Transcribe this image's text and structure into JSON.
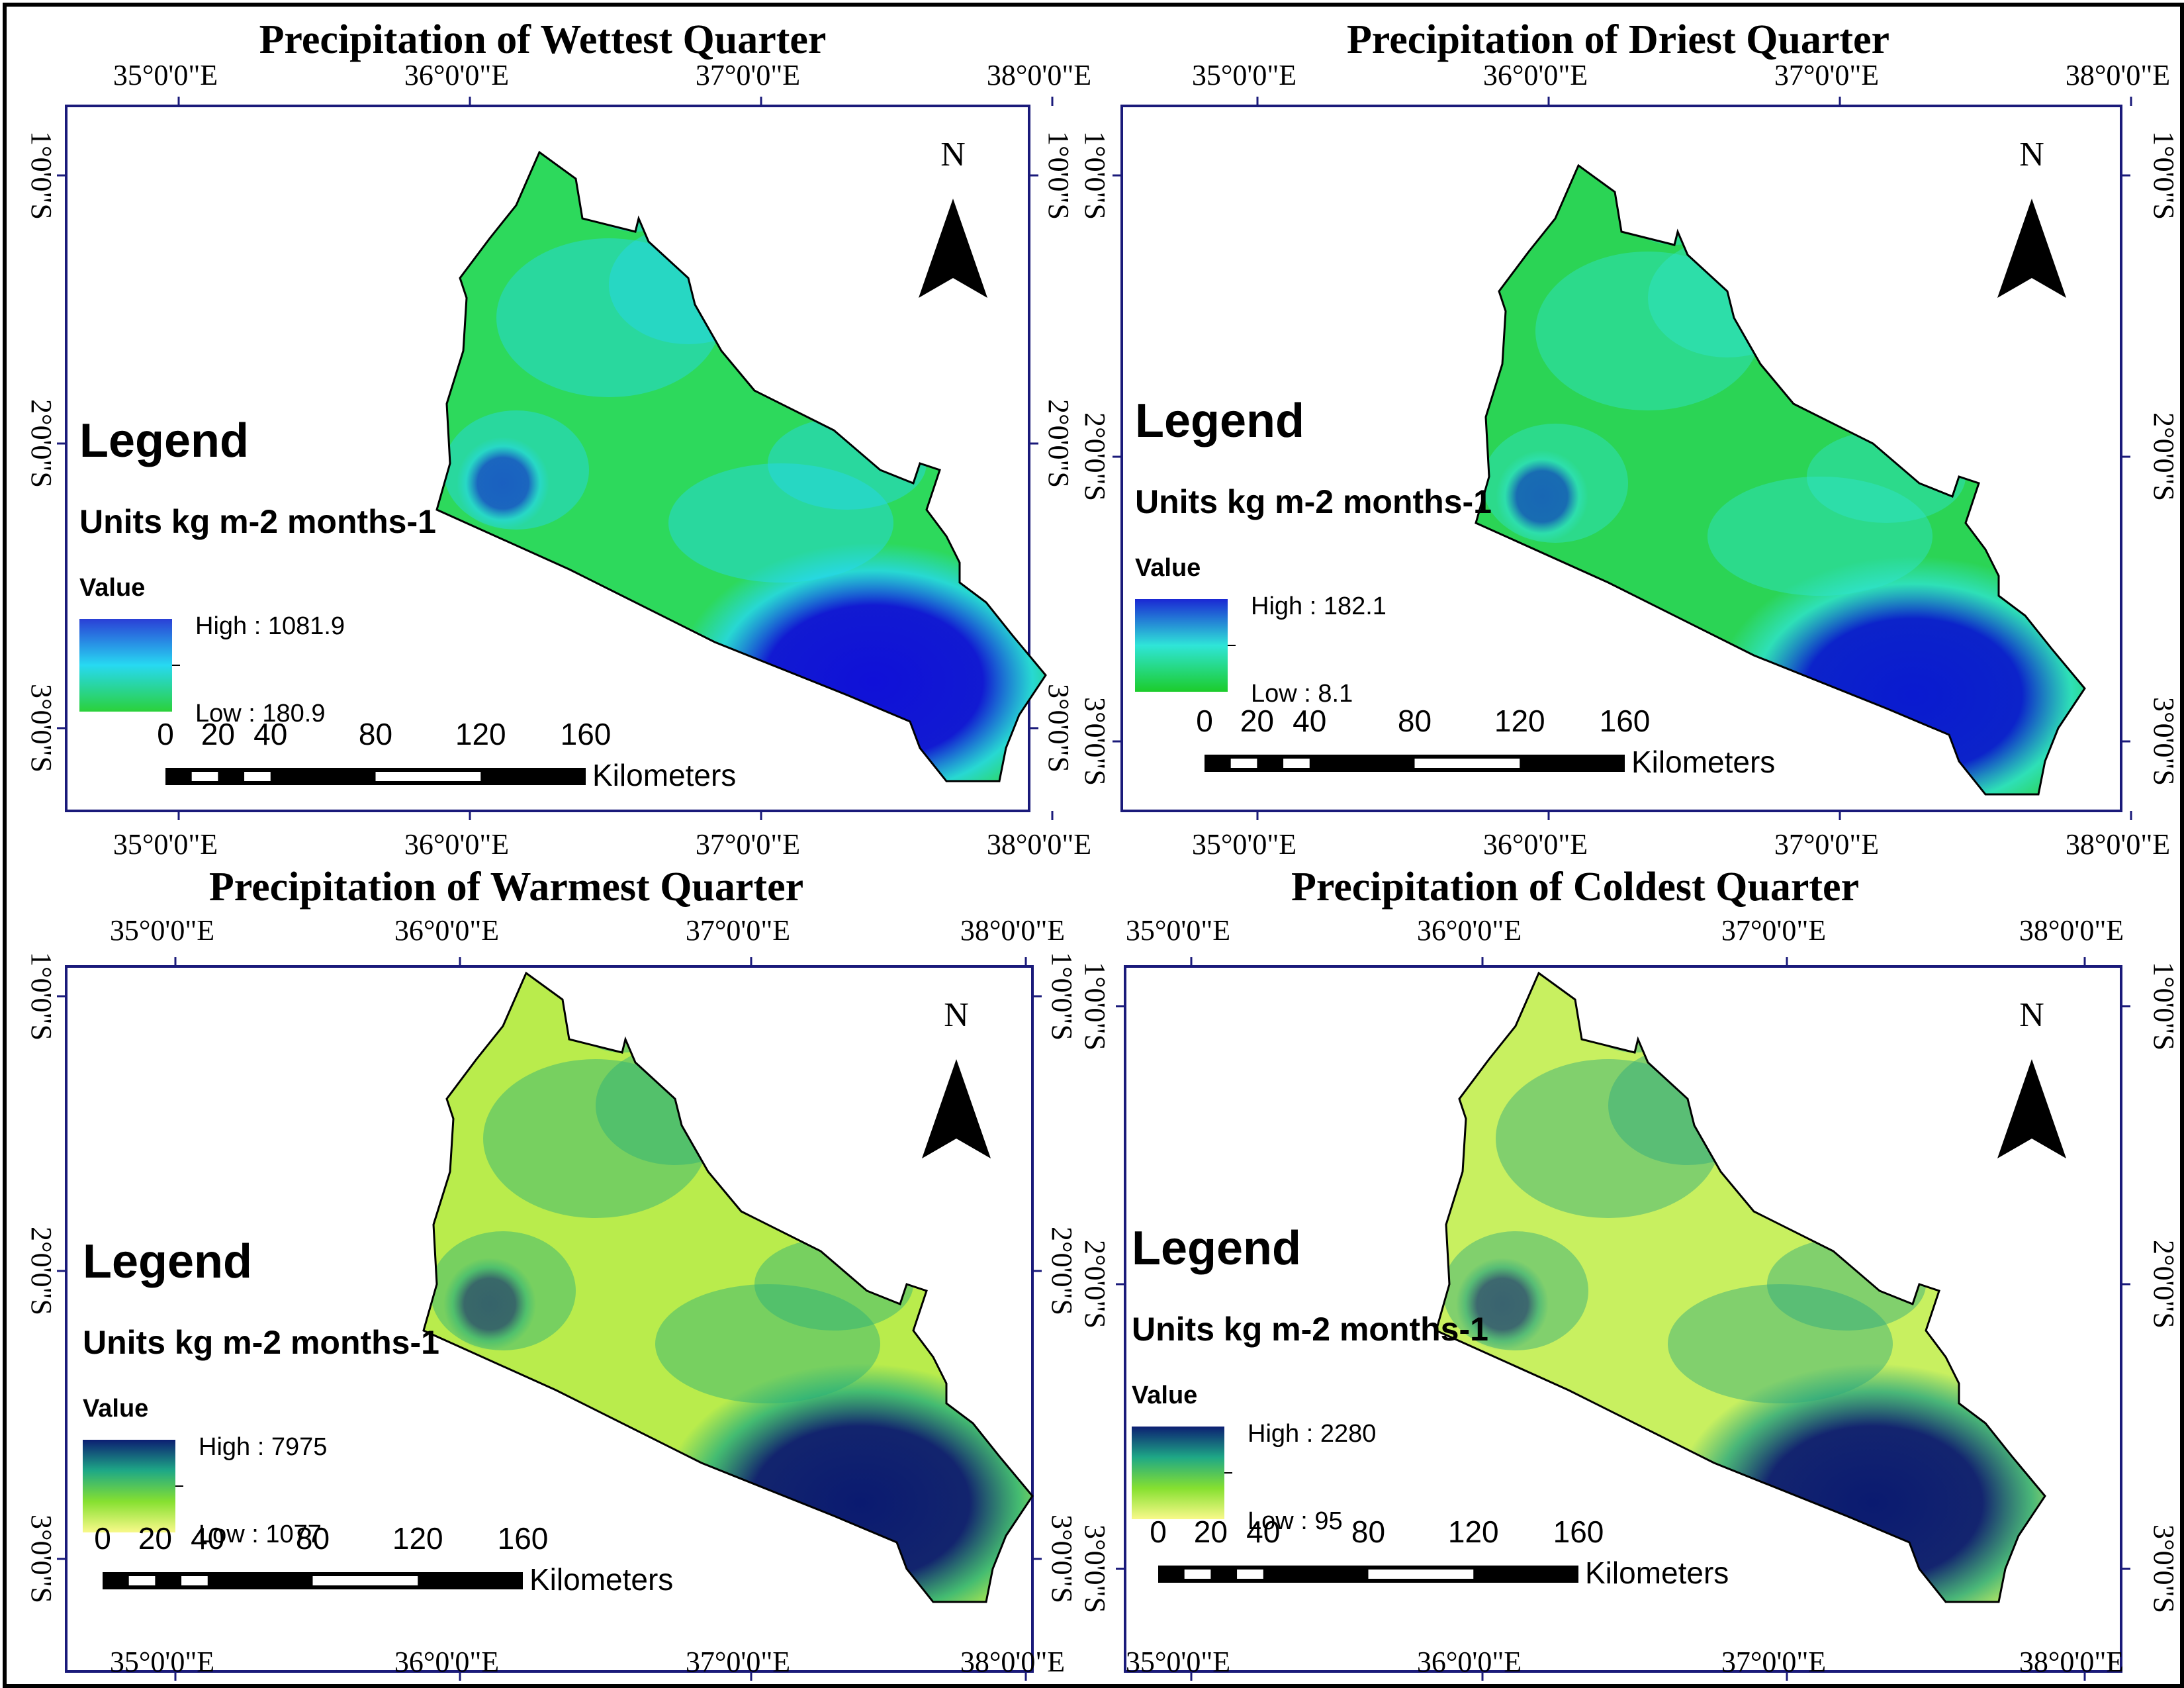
{
  "panels": [
    {
      "title": "Precipitation of Wettest Quarter",
      "legend_heading": "Legend",
      "units": "Units kg m-2 months-1",
      "value_label": "Value",
      "high_label": "High : 1081.9",
      "low_label": "Low : 180.9",
      "high_value": 1081.9,
      "low_value": 180.9,
      "ramp": [
        "#2a3fd6",
        "#27d9f2",
        "#2bd13a"
      ],
      "field": {
        "base": "#2dd95c",
        "hot": "#1010d8",
        "mid": "#26d8f0"
      }
    },
    {
      "title": "Precipitation of Driest Quarter",
      "legend_heading": "Legend",
      "units": "Units kg m-2 months-1",
      "value_label": "Value",
      "high_label": "High : 182.1",
      "low_label": "Low : 8.1",
      "high_value": 182.1,
      "low_value": 8.1,
      "ramp": [
        "#1a28d4",
        "#2fe5d8",
        "#1ccc2a"
      ],
      "field": {
        "base": "#2bd455",
        "hot": "#0a1ad0",
        "mid": "#2fe3cf"
      }
    },
    {
      "title": "Precipitation of Warmest Quarter",
      "legend_heading": "Legend",
      "units": "Units kg m-2 months-1",
      "value_label": "Value",
      "high_label": "High : 7975",
      "low_label": "Low : 1077",
      "high_value": 7975,
      "low_value": 1077,
      "ramp": [
        "#0c1f72",
        "#1ea886",
        "#86e030",
        "#f9f98a"
      ],
      "field": {
        "base": "#b9ec4c",
        "hot": "#0a1a70",
        "mid": "#27b07a"
      }
    },
    {
      "title": "Precipitation of Coldest Quarter",
      "legend_heading": "Legend",
      "units": "Units kg m-2 months-1",
      "value_label": "Value",
      "high_label": "High : 2280",
      "low_label": "Low : 95",
      "high_value": 2280,
      "low_value": 95,
      "ramp": [
        "#0c1f72",
        "#1ea886",
        "#86e030",
        "#f9f98a"
      ],
      "field": {
        "base": "#c8f060",
        "hot": "#0a1a70",
        "mid": "#2aa87e"
      }
    }
  ],
  "top_longitudes": [
    "35°0'0\"E",
    "36°0'0\"E",
    "37°0'0\"E",
    "38°0'0\"E"
  ],
  "bottom_longitudes": [
    "35°0'0\"E",
    "36°0'0\"E",
    "37°0'0\"E",
    "38°0'0\"E"
  ],
  "latitudes": [
    "1°0'0\"S",
    "2°0'0\"S",
    "3°0'0\"S"
  ],
  "scale_numbers": [
    "0",
    "20",
    "40",
    "80",
    "120",
    "160"
  ],
  "scale_unit": "Kilometers",
  "north_label": "N",
  "colors": {
    "frame": "#1a1a7a",
    "outline": "#000000"
  }
}
